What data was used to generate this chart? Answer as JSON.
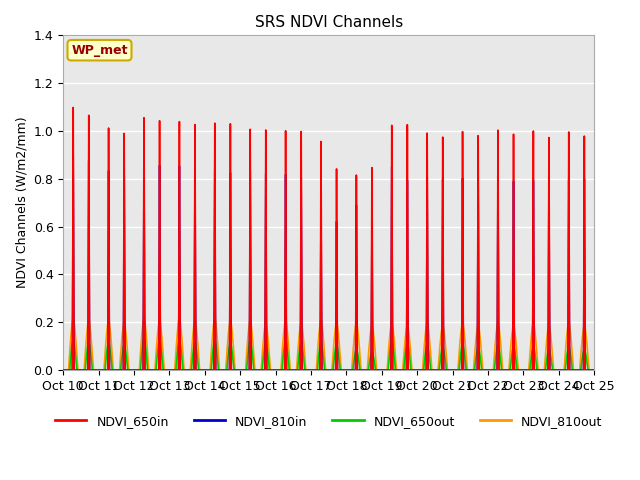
{
  "title": "SRS NDVI Channels",
  "ylabel": "NDVI Channels (W/m2/mm)",
  "ylim": [
    0.0,
    1.4
  ],
  "plot_bg_color": "#e8e8e8",
  "annotation_text": "WP_met",
  "annotation_bg": "#ffffcc",
  "annotation_border": "#ccaa00",
  "annotation_text_color": "#990000",
  "grid_color": "white",
  "series": {
    "NDVI_650in": {
      "color": "#ff0000",
      "lw": 1.2
    },
    "NDVI_810in": {
      "color": "#0000cc",
      "lw": 1.2
    },
    "NDVI_650out": {
      "color": "#00cc00",
      "lw": 1.2
    },
    "NDVI_810out": {
      "color": "#ff9900",
      "lw": 1.2
    }
  },
  "x_tick_labels": [
    "Oct 10",
    "Oct 11",
    "Oct 12",
    "Oct 13",
    "Oct 14",
    "Oct 15",
    "Oct 16",
    "Oct 17",
    "Oct 18",
    "Oct 19",
    "Oct 20",
    "Oct 21",
    "Oct 22",
    "Oct 23",
    "Oct 24",
    "Oct 25"
  ],
  "n_cycles": 15,
  "peaks1_650in": [
    1.1,
    1.02,
    1.07,
    1.06,
    1.06,
    1.04,
    1.04,
    1.0,
    0.85,
    1.06,
    1.02,
    1.02,
    1.02,
    1.01,
    1.0
  ],
  "peaks2_650in": [
    1.07,
    1.0,
    1.06,
    1.05,
    1.06,
    1.04,
    1.04,
    0.88,
    0.88,
    1.06,
    1.0,
    1.0,
    1.0,
    0.98,
    0.98
  ],
  "peaks1_810in": [
    0.9,
    0.84,
    0.88,
    0.87,
    0.86,
    0.86,
    0.85,
    0.71,
    0.72,
    0.88,
    0.82,
    0.82,
    0.82,
    0.8,
    0.8
  ],
  "peaks2_810in": [
    0.88,
    0.83,
    0.87,
    0.86,
    0.85,
    0.85,
    0.84,
    0.65,
    0.6,
    0.82,
    0.82,
    0.82,
    0.8,
    0.8,
    0.8
  ],
  "peaks1_650out": [
    0.13,
    0.12,
    0.14,
    0.13,
    0.13,
    0.13,
    0.13,
    0.12,
    0.09,
    0.13,
    0.11,
    0.11,
    0.11,
    0.1,
    0.1
  ],
  "peaks2_650out": [
    0.12,
    0.11,
    0.13,
    0.12,
    0.12,
    0.12,
    0.12,
    0.11,
    0.08,
    0.12,
    0.1,
    0.1,
    0.1,
    0.09,
    0.09
  ],
  "peaks1_810out": [
    0.22,
    0.21,
    0.22,
    0.22,
    0.22,
    0.21,
    0.21,
    0.21,
    0.2,
    0.2,
    0.2,
    0.2,
    0.2,
    0.2,
    0.2
  ],
  "peaks2_810out": [
    0.21,
    0.2,
    0.21,
    0.21,
    0.21,
    0.2,
    0.2,
    0.2,
    0.19,
    0.19,
    0.19,
    0.19,
    0.19,
    0.19,
    0.19
  ]
}
